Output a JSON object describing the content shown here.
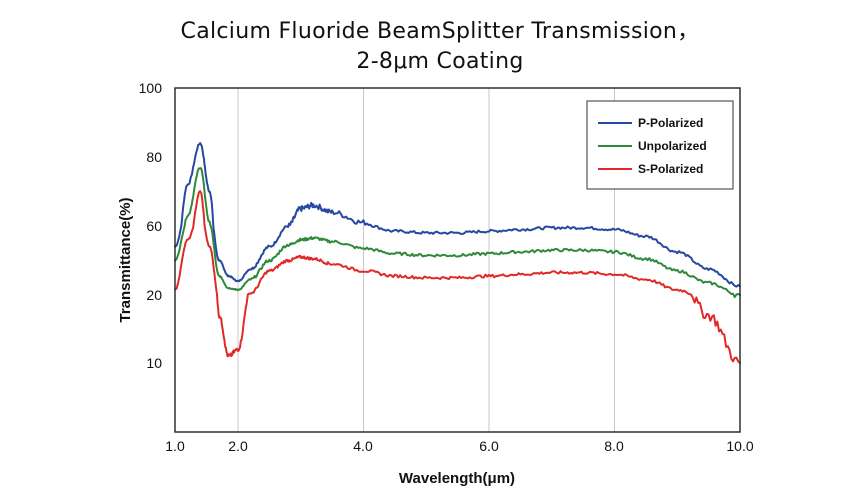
{
  "chart_data": {
    "type": "line",
    "title_line1": "Calcium Fluoride BeamSplitter Transmission，",
    "title_line2": "2-8μm Coating",
    "xlabel": "Wavelength(μm)",
    "ylabel": "Transmittance(%)",
    "x_ticks": [
      "1.0",
      "2.0",
      "4.0",
      "6.0",
      "8.0",
      "10.0"
    ],
    "y_ticks": [
      "100",
      "80",
      "60",
      "20",
      "10"
    ],
    "grid": true,
    "legend_position": "top-right",
    "series": [
      {
        "name": "P-Polarized",
        "color": "#2748a0",
        "x": [
          1.0,
          1.2,
          1.4,
          1.55,
          1.7,
          1.85,
          2.0,
          2.2,
          2.5,
          2.8,
          3.0,
          3.2,
          3.5,
          4.0,
          4.5,
          5.0,
          5.5,
          6.0,
          6.5,
          7.0,
          7.5,
          8.0,
          8.5,
          9.0,
          9.5,
          10.0
        ],
        "y": [
          48,
          72,
          84,
          70,
          40,
          31,
          28,
          35,
          48,
          60,
          65,
          66,
          64,
          61,
          57,
          56,
          56,
          57,
          58,
          59,
          59,
          58,
          54,
          45,
          35,
          25
        ]
      },
      {
        "name": "Unpolarized",
        "color": "#2e8a3a",
        "x": [
          1.0,
          1.2,
          1.4,
          1.55,
          1.7,
          1.85,
          2.0,
          2.2,
          2.5,
          2.8,
          3.0,
          3.2,
          3.5,
          4.0,
          4.5,
          5.0,
          5.5,
          6.0,
          6.5,
          7.0,
          7.5,
          8.0,
          8.5,
          9.0,
          9.5,
          10.0
        ],
        "y": [
          40,
          63,
          77,
          61,
          31,
          24,
          23,
          29,
          40,
          49,
          52,
          53,
          51,
          47,
          44,
          43,
          43,
          44,
          45,
          46,
          46,
          45,
          41,
          34,
          27,
          20
        ]
      },
      {
        "name": "S-Polarized",
        "color": "#e02a28",
        "x": [
          1.0,
          1.2,
          1.4,
          1.55,
          1.7,
          1.85,
          2.0,
          2.2,
          2.5,
          2.8,
          3.0,
          3.2,
          3.5,
          4.0,
          4.5,
          5.0,
          5.5,
          6.0,
          6.5,
          7.0,
          7.5,
          8.0,
          8.5,
          9.0,
          9.5,
          10.0
        ],
        "y": [
          23,
          52,
          70,
          48,
          17,
          11,
          12,
          21,
          34,
          40,
          42,
          41,
          38,
          34,
          31,
          30,
          30,
          31,
          32,
          33,
          33,
          32,
          29,
          23,
          17,
          10
        ]
      }
    ]
  }
}
